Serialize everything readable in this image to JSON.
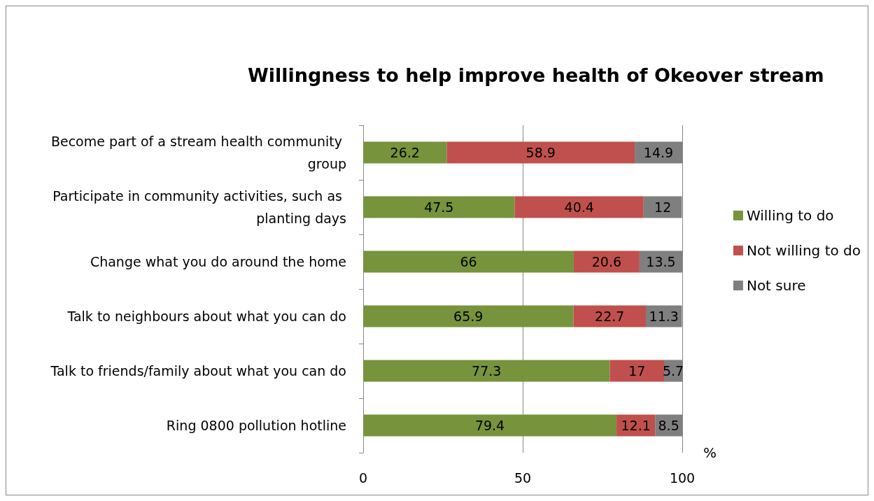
{
  "chart_data": {
    "type": "bar",
    "orientation": "horizontal",
    "stacked": true,
    "title": "Willingness to help improve health of Okeover stream",
    "xlabel": "%",
    "categories": [
      "Become part of a stream health community group",
      "Participate in community activities, such as planting days",
      "Change what you do around the home",
      "Talk to neighbours about what you can do",
      "Talk to friends/family about what you can do",
      "Ring 0800 pollution hotline"
    ],
    "series": [
      {
        "name": "Willing to do",
        "color": "#77933c",
        "values": [
          26.2,
          47.5,
          66,
          65.9,
          77.3,
          79.4
        ]
      },
      {
        "name": "Not willing to do",
        "color": "#c0504d",
        "values": [
          58.9,
          40.4,
          20.6,
          22.7,
          17,
          12.1
        ]
      },
      {
        "name": "Not sure",
        "color": "#7f7f7f",
        "values": [
          14.9,
          12,
          13.5,
          11.3,
          5.7,
          8.5
        ]
      }
    ],
    "xlim": [
      0,
      100
    ],
    "xticks": [
      0,
      50,
      100
    ],
    "grid": "x",
    "legend": "right",
    "data_labels": true
  }
}
